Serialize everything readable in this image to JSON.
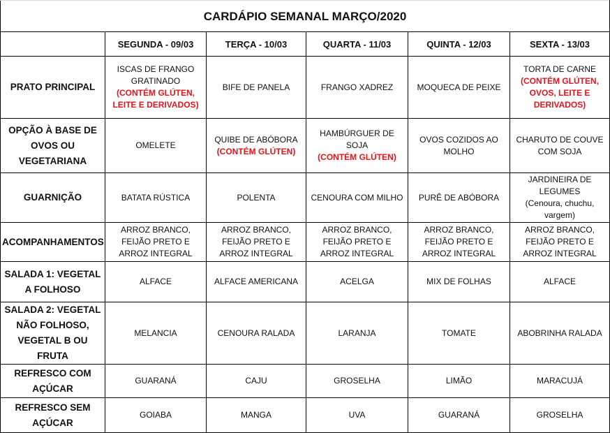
{
  "title": "CARDÁPIO SEMANAL MARÇO/2020",
  "days": [
    "SEGUNDA - 09/03",
    "TERÇA - 10/03",
    "QUARTA - 11/03",
    "QUINTA - 12/03",
    "SEXTA - 13/03"
  ],
  "accent_color": "#e8131b",
  "rows": [
    {
      "label": "PRATO PRINCIPAL",
      "cells": [
        {
          "text": "ISCAS DE FRANGO GRATINADO",
          "allergen": "(CONTÉM GLÚTEN, LEITE E DERIVADOS)"
        },
        {
          "text": "BIFE DE PANELA"
        },
        {
          "text": "FRANGO XADREZ"
        },
        {
          "text": "MOQUECA DE PEIXE"
        },
        {
          "text": "TORTA DE CARNE",
          "allergen": "(CONTÉM GLÚTEN, OVOS, LEITE E DERIVADOS)"
        }
      ]
    },
    {
      "label": "OPÇÃO À BASE DE OVOS OU VEGETARIANA",
      "cells": [
        {
          "text": "OMELETE"
        },
        {
          "text": "QUIBE DE ABÓBORA",
          "allergen": "(CONTÉM GLÚTEN)"
        },
        {
          "text": "HAMBÚRGUER DE SOJA",
          "allergen": "(CONTÉM GLÚTEN)"
        },
        {
          "text": "OVOS COZIDOS AO MOLHO"
        },
        {
          "text": "CHARUTO DE COUVE COM SOJA"
        }
      ]
    },
    {
      "label": "GUARNIÇÃO",
      "cells": [
        {
          "text": "BATATA RÚSTICA"
        },
        {
          "text": "POLENTA"
        },
        {
          "text": "CENOURA COM MILHO"
        },
        {
          "text": "PURÊ DE ABÓBORA"
        },
        {
          "text": "JARDINEIRA DE LEGUMES",
          "note": "(Cenoura, chuchu, vargem)"
        }
      ]
    },
    {
      "label": "ACOMPANHAMENTOS",
      "cells": [
        {
          "text": "ARROZ BRANCO, FEIJÃO PRETO E ARROZ INTEGRAL"
        },
        {
          "text": "ARROZ BRANCO, FEIJÃO PRETO E ARROZ INTEGRAL"
        },
        {
          "text": "ARROZ BRANCO, FEIJÃO PRETO E ARROZ INTEGRAL"
        },
        {
          "text": "ARROZ BRANCO, FEIJÃO PRETO E ARROZ INTEGRAL"
        },
        {
          "text": "ARROZ BRANCO, FEIJÃO PRETO E ARROZ INTEGRAL"
        }
      ]
    },
    {
      "label": "SALADA 1: VEGETAL A FOLHOSO",
      "cells": [
        {
          "text": "ALFACE"
        },
        {
          "text": "ALFACE AMERICANA"
        },
        {
          "text": "ACELGA"
        },
        {
          "text": "MIX DE FOLHAS"
        },
        {
          "text": "ALFACE"
        }
      ]
    },
    {
      "label": "SALADA 2: VEGETAL NÃO FOLHOSO, VEGETAL B OU FRUTA",
      "cells": [
        {
          "text": "MELANCIA"
        },
        {
          "text": "CENOURA RALADA"
        },
        {
          "text": "LARANJA"
        },
        {
          "text": "TOMATE"
        },
        {
          "text": "ABOBRINHA RALADA"
        }
      ]
    },
    {
      "label": "REFRESCO COM AÇÚCAR",
      "cells": [
        {
          "text": "GUARANÁ"
        },
        {
          "text": "CAJU"
        },
        {
          "text": "GROSELHA"
        },
        {
          "text": "LIMÃO"
        },
        {
          "text": "MARACUJÁ"
        }
      ]
    },
    {
      "label": "REFRESCO SEM AÇÚCAR",
      "cells": [
        {
          "text": "GOIABA"
        },
        {
          "text": "MANGA"
        },
        {
          "text": "UVA"
        },
        {
          "text": "GUARANÁ"
        },
        {
          "text": "GROSELHA"
        }
      ]
    }
  ]
}
